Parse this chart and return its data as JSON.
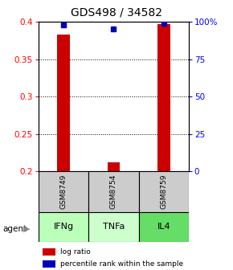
{
  "title": "GDS498 / 34582",
  "samples": [
    "GSM8749",
    "GSM8754",
    "GSM8759"
  ],
  "agents": [
    "IFNg",
    "TNFa",
    "IL4"
  ],
  "log_ratio_values": [
    0.383,
    0.212,
    0.397
  ],
  "percentile_values": [
    98,
    95,
    99
  ],
  "ylim_left": [
    0.2,
    0.4
  ],
  "ylim_right": [
    0,
    100
  ],
  "yticks_left": [
    0.2,
    0.25,
    0.3,
    0.35,
    0.4
  ],
  "yticks_right": [
    0,
    25,
    50,
    75,
    100
  ],
  "ytick_labels_right": [
    "0",
    "25",
    "50",
    "75",
    "100%"
  ],
  "bar_color": "#cc0000",
  "dot_color": "#0000bb",
  "sample_box_color": "#cccccc",
  "agent_colors": [
    "#bbffbb",
    "#ccffcc",
    "#66dd66"
  ],
  "title_fontsize": 10,
  "bar_width": 0.25,
  "baseline": 0.2,
  "x_positions": [
    1,
    2,
    3
  ],
  "xlim": [
    0.5,
    3.5
  ]
}
